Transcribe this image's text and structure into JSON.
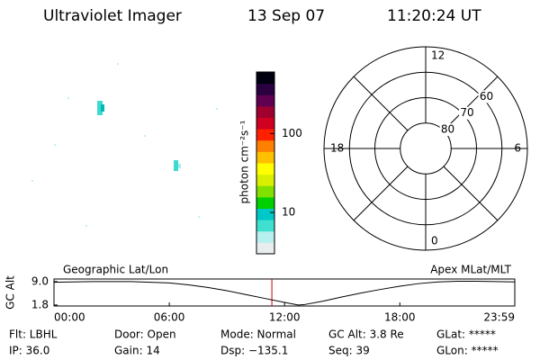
{
  "header": {
    "title": "Ultraviolet Imager",
    "date": "13 Sep 07",
    "time": "11:20:24 UT"
  },
  "chart_data": [
    {
      "type": "colorbar",
      "ylabel": "photon cm⁻²s⁻¹",
      "log_scale": true,
      "ylim": [
        3,
        600
      ],
      "yticks": [
        10,
        100
      ],
      "colors": [
        "#e8eeee",
        "#b8f0f0",
        "#40e0d0",
        "#00c8c8",
        "#00d000",
        "#80e000",
        "#d8f000",
        "#ffff00",
        "#ffc000",
        "#ff8000",
        "#ff2000",
        "#d00020",
        "#a00030",
        "#600050",
        "#2a0040",
        "#000010"
      ]
    },
    {
      "type": "polar",
      "rlim": [
        90,
        50
      ],
      "rticks": [
        60,
        70,
        80
      ],
      "thetaticks": [
        12,
        18,
        6,
        0
      ],
      "theta_grid": [
        0,
        3,
        6,
        9,
        12,
        15,
        18,
        21
      ]
    },
    {
      "type": "line",
      "ylabel": "GC Alt",
      "annotations": [
        "Geographic Lat/Lon",
        "Apex MLat/MLT"
      ],
      "x": [
        0,
        2,
        4,
        6,
        7,
        8,
        9,
        10,
        11,
        12,
        12.7,
        13,
        14,
        15,
        16,
        17,
        18,
        19,
        20,
        21,
        22,
        23.983
      ],
      "values": [
        8.8,
        9.0,
        9.0,
        8.6,
        8.0,
        7.2,
        6.2,
        5.0,
        3.8,
        2.6,
        1.8,
        1.9,
        3.0,
        4.3,
        5.5,
        6.6,
        7.6,
        8.4,
        8.9,
        9.1,
        9.1,
        8.9
      ],
      "color": "#000000",
      "xlim": [
        0,
        23.983
      ],
      "ylim": [
        1.5,
        9.8
      ],
      "xticks": [
        {
          "value": 0,
          "label": "00:00"
        },
        {
          "value": 6,
          "label": "06:00"
        },
        {
          "value": 12,
          "label": "12:00"
        },
        {
          "value": 18,
          "label": "18:00"
        },
        {
          "value": 23.983,
          "label": "23:59"
        }
      ],
      "yticks": [
        1.8,
        {
          "value": 9,
          "label": "9.0"
        }
      ],
      "current_time": 11.34,
      "current_time_color": "#cc0000"
    }
  ],
  "footer": {
    "rows": [
      [
        "Flt: LBHL",
        "Door: Open",
        "Mode: Normal",
        "GC Alt: 3.8 Re",
        "GLat: *****"
      ],
      [
        "IP: 36.0",
        "Gain: 14",
        "Dsp: −135.1",
        "Seq: 39",
        "GLon: *****"
      ]
    ]
  }
}
